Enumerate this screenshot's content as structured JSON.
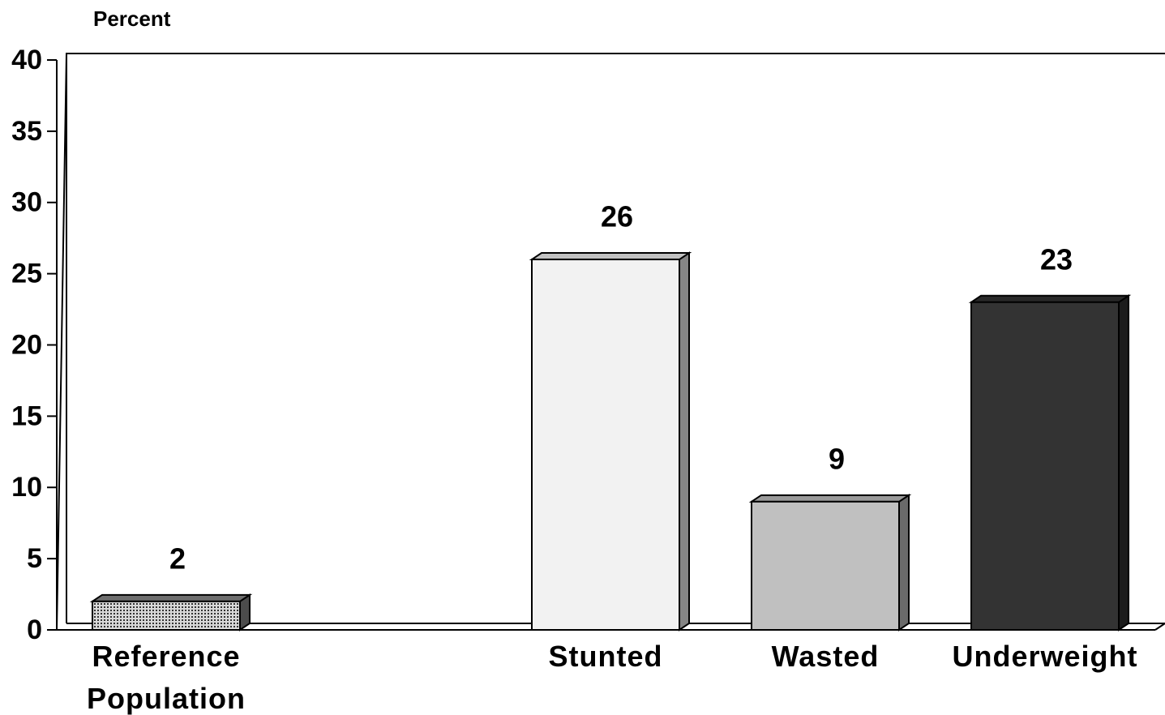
{
  "chart_data": {
    "type": "bar",
    "y_label": "Percent",
    "categories": [
      "Reference Population",
      null,
      "Stunted",
      "Wasted",
      "Underweight"
    ],
    "values": [
      2,
      null,
      26,
      9,
      23
    ],
    "colors": [
      "#8a8a8a",
      null,
      "#f2f2f2",
      "#c0c0c0",
      "#333333"
    ],
    "ylim": [
      0,
      40
    ],
    "yticks": [
      0,
      5,
      10,
      15,
      20,
      25,
      30,
      35,
      40
    ],
    "grid": false
  }
}
